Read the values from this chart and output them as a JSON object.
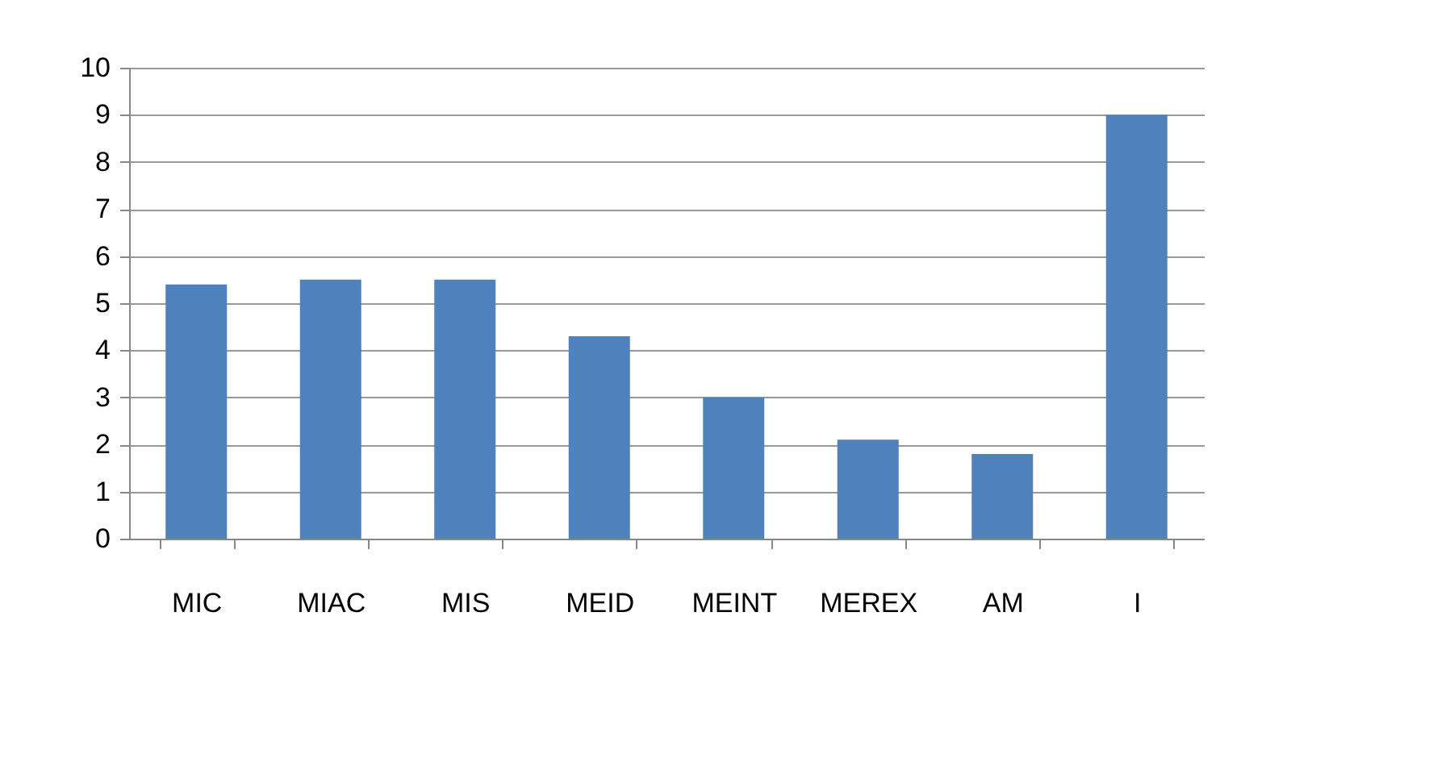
{
  "chart_data": {
    "type": "bar",
    "categories": [
      "MIC",
      "MIAC",
      "MIS",
      "MEID",
      "MEINT",
      "MEREX",
      "AM",
      "I"
    ],
    "values": [
      5.4,
      5.5,
      5.5,
      4.3,
      3.0,
      2.1,
      1.8,
      9.0
    ],
    "color": "#4f81bd",
    "ylim": [
      0,
      10
    ],
    "yticks": [
      0,
      1,
      2,
      3,
      4,
      5,
      6,
      7,
      8,
      9,
      10
    ],
    "grid": "y"
  }
}
